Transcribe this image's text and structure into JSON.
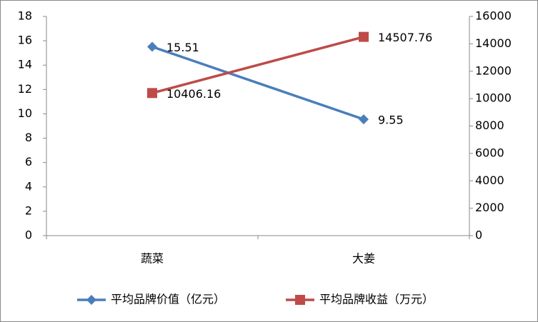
{
  "chart_data": {
    "type": "line",
    "categories": [
      "蔬菜",
      "大姜"
    ],
    "series": [
      {
        "name": "平均品牌价值（亿元）",
        "color": "#4a7ebb",
        "marker": "diamond",
        "values": [
          15.51,
          9.55
        ]
      },
      {
        "name": "平均品牌收益（万元）",
        "color": "#be4b48",
        "marker": "square",
        "axis": "y2",
        "values": [
          10406.16,
          14507.76
        ]
      }
    ],
    "ylim": [
      0,
      18
    ],
    "yticks": [
      0,
      2,
      4,
      6,
      8,
      10,
      12,
      14,
      16,
      18
    ],
    "y2lim": [
      0,
      16000
    ],
    "y2ticks": [
      0,
      2000,
      4000,
      6000,
      8000,
      10000,
      12000,
      14000,
      16000
    ],
    "legend": "bottom"
  }
}
